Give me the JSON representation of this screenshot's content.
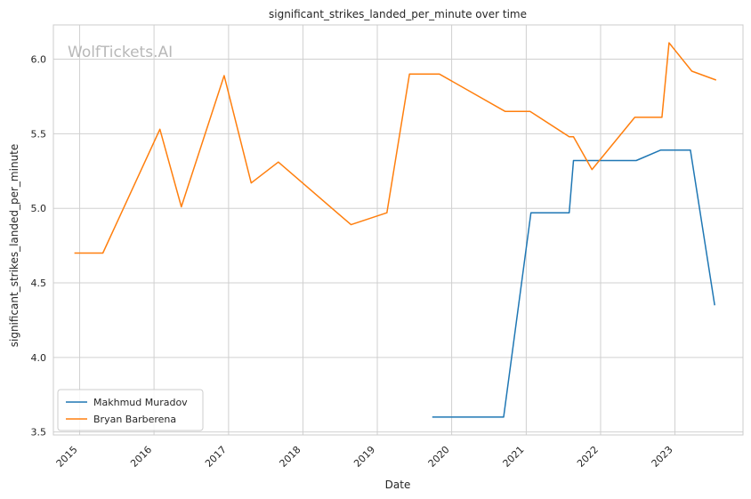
{
  "chart_data": {
    "type": "line",
    "title": "significant_strikes_landed_per_minute over time",
    "xlabel": "Date",
    "ylabel": "significant_strikes_landed_per_minute",
    "watermark": "WolfTickets.AI",
    "x_tick_labels": [
      "2015",
      "2016",
      "2017",
      "2018",
      "2019",
      "2020",
      "2021",
      "2022",
      "2023"
    ],
    "y_ticks": [
      3.5,
      4.0,
      4.5,
      5.0,
      5.5,
      6.0
    ],
    "y_tick_labels": [
      "3.5",
      "4.0",
      "4.5",
      "5.0",
      "5.5",
      "6.0"
    ],
    "xlim": [
      "2014-08-25",
      "2023-12-01"
    ],
    "ylim": [
      3.48,
      6.23
    ],
    "grid": true,
    "legend_position": "lower-left",
    "series": [
      {
        "name": "Makhmud Muradov",
        "color": "#1f77b4",
        "points": [
          {
            "x": "2019-09-28",
            "y": 3.6
          },
          {
            "x": "2020-09-12",
            "y": 3.6
          },
          {
            "x": "2021-01-24",
            "y": 4.97
          },
          {
            "x": "2021-07-31",
            "y": 4.97
          },
          {
            "x": "2021-08-21",
            "y": 5.32
          },
          {
            "x": "2022-06-25",
            "y": 5.32
          },
          {
            "x": "2022-10-22",
            "y": 5.39
          },
          {
            "x": "2023-03-18",
            "y": 5.39
          },
          {
            "x": "2023-07-15",
            "y": 4.35
          }
        ]
      },
      {
        "name": "Bryan Barberena",
        "color": "#ff7f0e",
        "points": [
          {
            "x": "2014-12-06",
            "y": 4.7
          },
          {
            "x": "2015-04-25",
            "y": 4.7
          },
          {
            "x": "2016-01-30",
            "y": 5.53
          },
          {
            "x": "2016-05-14",
            "y": 5.01
          },
          {
            "x": "2016-12-10",
            "y": 5.89
          },
          {
            "x": "2017-04-22",
            "y": 5.17
          },
          {
            "x": "2017-09-02",
            "y": 5.31
          },
          {
            "x": "2018-08-25",
            "y": 4.89
          },
          {
            "x": "2019-02-17",
            "y": 4.97
          },
          {
            "x": "2019-06-08",
            "y": 5.9
          },
          {
            "x": "2019-11-02",
            "y": 5.9
          },
          {
            "x": "2020-09-19",
            "y": 5.65
          },
          {
            "x": "2021-01-20",
            "y": 5.65
          },
          {
            "x": "2021-07-31",
            "y": 5.48
          },
          {
            "x": "2021-08-21",
            "y": 5.48
          },
          {
            "x": "2021-11-20",
            "y": 5.26
          },
          {
            "x": "2022-06-18",
            "y": 5.61
          },
          {
            "x": "2022-10-29",
            "y": 5.61
          },
          {
            "x": "2022-12-03",
            "y": 6.11
          },
          {
            "x": "2023-03-25",
            "y": 5.92
          },
          {
            "x": "2023-07-22",
            "y": 5.86
          }
        ]
      }
    ]
  }
}
